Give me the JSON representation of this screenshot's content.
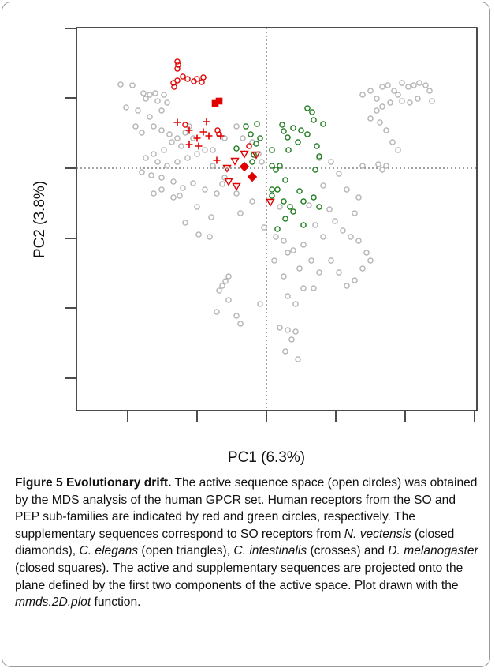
{
  "chart_data": {
    "type": "scatter",
    "xlabel": "PC1 (6.3%)",
    "ylabel": "PC2 (3.8%)",
    "xlim": [
      -241,
      267
    ],
    "ylim": [
      -307,
      178
    ],
    "xticks": [
      -176,
      -88,
      0,
      88,
      176,
      264
    ],
    "yticks": [
      177,
      89,
      0,
      -89,
      -177,
      -266
    ],
    "series": [
      {
        "marker": "circle",
        "color": "#b3b3b3",
        "x": [
          -185,
          -170,
          -156,
          -148,
          -141,
          -130,
          -153,
          -138,
          -126,
          -133,
          -163,
          -148,
          -178,
          -166,
          -158,
          -143,
          -133,
          -123,
          -113,
          -103,
          -98,
          -93,
          -108,
          -120,
          -130,
          -143,
          -153,
          -138,
          -126,
          -113,
          -100,
          -88,
          -78,
          -158,
          -146,
          -133,
          -118,
          -106,
          -93,
          -78,
          -133,
          -118,
          -143,
          -68,
          -53,
          -63,
          -70,
          -110,
          -88,
          -103,
          -86,
          -72,
          -56,
          -38,
          -33,
          -18,
          -38,
          -30,
          -18,
          -10,
          -6,
          -53,
          -68,
          17,
          -3,
          12,
          22,
          34,
          47,
          27,
          10,
          42,
          57,
          22,
          47,
          72,
          62,
          54,
          80,
          87,
          97,
          107,
          117,
          127,
          132,
          122,
          112,
          102,
          92,
          82,
          67,
          60,
          37,
          27,
          102,
          117,
          112,
          122,
          82,
          92,
          72,
          67,
          122,
          132,
          140,
          147,
          154,
          162,
          167,
          172,
          180,
          187,
          194,
          202,
          207,
          210,
          192,
          182,
          172,
          157,
          147,
          140,
          132,
          144,
          152,
          160,
          167,
          152,
          142,
          147,
          -48,
          -52,
          -56,
          -60,
          -48,
          -63,
          -38,
          -33,
          -8,
          17,
          27,
          37,
          32,
          24,
          40
        ],
        "values": [
          106,
          105,
          95,
          93,
          95,
          93,
          88,
          85,
          83,
          73,
          73,
          65,
          77,
          53,
          45,
          53,
          48,
          43,
          38,
          45,
          53,
          38,
          28,
          33,
          23,
          18,
          13,
          8,
          3,
          8,
          13,
          18,
          23,
          -5,
          -9,
          -12,
          -17,
          -25,
          -19,
          -27,
          -27,
          -37,
          -32,
          3,
          -12,
          -32,
          -62,
          -35,
          -49,
          -69,
          -84,
          -87,
          -20,
          -32,
          -57,
          -42,
          53,
          38,
          33,
          18,
          8,
          38,
          23,
          -49,
          -75,
          -87,
          -92,
          -104,
          -97,
          -107,
          -117,
          -127,
          -117,
          -137,
          -152,
          -87,
          -72,
          -47,
          -52,
          -67,
          -79,
          -87,
          -92,
          -107,
          -117,
          -127,
          -142,
          -149,
          -132,
          -117,
          -132,
          -152,
          -172,
          -162,
          -27,
          -37,
          -57,
          3,
          8,
          -7,
          -22,
          13,
          93,
          98,
          88,
          103,
          105,
          98,
          93,
          108,
          103,
          105,
          108,
          105,
          98,
          85,
          88,
          83,
          85,
          83,
          78,
          73,
          63,
          58,
          48,
          33,
          23,
          3,
          5,
          -2,
          -137,
          -143,
          -149,
          -155,
          -167,
          -182,
          -187,
          -197,
          -172,
          -202,
          -205,
          -207,
          -217,
          -232,
          -242
        ]
      },
      {
        "marker": "circle",
        "color": "#e00000",
        "x": [
          -113,
          -112,
          -113,
          -118,
          -117,
          -113,
          -106,
          -100,
          -92,
          -88,
          -82,
          -80,
          -62,
          -60,
          -22,
          -103
        ],
        "values": [
          135,
          131,
          126,
          108,
          103,
          111,
          116,
          113,
          110,
          113,
          109,
          115,
          48,
          43,
          28,
          55
        ]
      },
      {
        "marker": "circle",
        "color": "#1a7a1a",
        "x": [
          -38,
          -26,
          -20,
          -12,
          -13,
          -16,
          -18,
          -8,
          7,
          7,
          7,
          7,
          12,
          17,
          20,
          22,
          27,
          34,
          28,
          40,
          44,
          52,
          58,
          60,
          52,
          64,
          67,
          62,
          72,
          22,
          30,
          34,
          24,
          42,
          47,
          60,
          67,
          14,
          47,
          24,
          14
        ],
        "values": [
          25,
          53,
          43,
          56,
          31,
          17,
          8,
          38,
          23,
          3,
          -27,
          -35,
          -2,
          3,
          55,
          47,
          39,
          51,
          23,
          33,
          48,
          76,
          71,
          61,
          43,
          28,
          15,
          -2,
          56,
          -42,
          -49,
          -55,
          -64,
          -29,
          -42,
          -37,
          -49,
          -77,
          -72,
          -15,
          -27
        ]
      },
      {
        "marker": "cross",
        "color": "#e00000",
        "x": [
          -113,
          -98,
          -76,
          -80,
          -73,
          -88,
          -98,
          -86,
          -63,
          -58
        ],
        "values": [
          58,
          48,
          59,
          46,
          41,
          38,
          30,
          28,
          10,
          41
        ]
      },
      {
        "marker": "triangle-down",
        "color": "#e00000",
        "x": [
          -40,
          -50,
          -48,
          -38,
          -28,
          -13,
          5
        ],
        "values": [
          9,
          0,
          -17,
          -23,
          18,
          17,
          -43
        ]
      },
      {
        "marker": "diamond",
        "color": "#e00000",
        "x": [
          -28,
          -18
        ],
        "values": [
          2,
          -11
        ]
      },
      {
        "marker": "square",
        "color": "#e00000",
        "x": [
          -60,
          -65
        ],
        "values": [
          85,
          82
        ]
      }
    ]
  },
  "caption": {
    "label": "Figure 5 Evolutionary drift.",
    "parts": [
      {
        "text": " The active sequence space (open circles) was obtained by the MDS analysis of the human GPCR set. Human receptors from the SO and PEP sub-families are indicated by red and green circles, respectively. The supplementary sequences correspond to SO receptors from "
      },
      {
        "text": "N. vectensis",
        "italic": true
      },
      {
        "text": " (closed diamonds), "
      },
      {
        "text": "C. elegans",
        "italic": true
      },
      {
        "text": " (open triangles), "
      },
      {
        "text": "C. intestinalis",
        "italic": true
      },
      {
        "text": " (crosses) and "
      },
      {
        "text": "D. melanogaster",
        "italic": true
      },
      {
        "text": " (closed squares). The active and supplementary sequences are projected onto the plane defined by the first two components of the active space. Plot drawn with the "
      },
      {
        "text": "mmds.2D.plot",
        "italic": true
      },
      {
        "text": " function."
      }
    ]
  }
}
